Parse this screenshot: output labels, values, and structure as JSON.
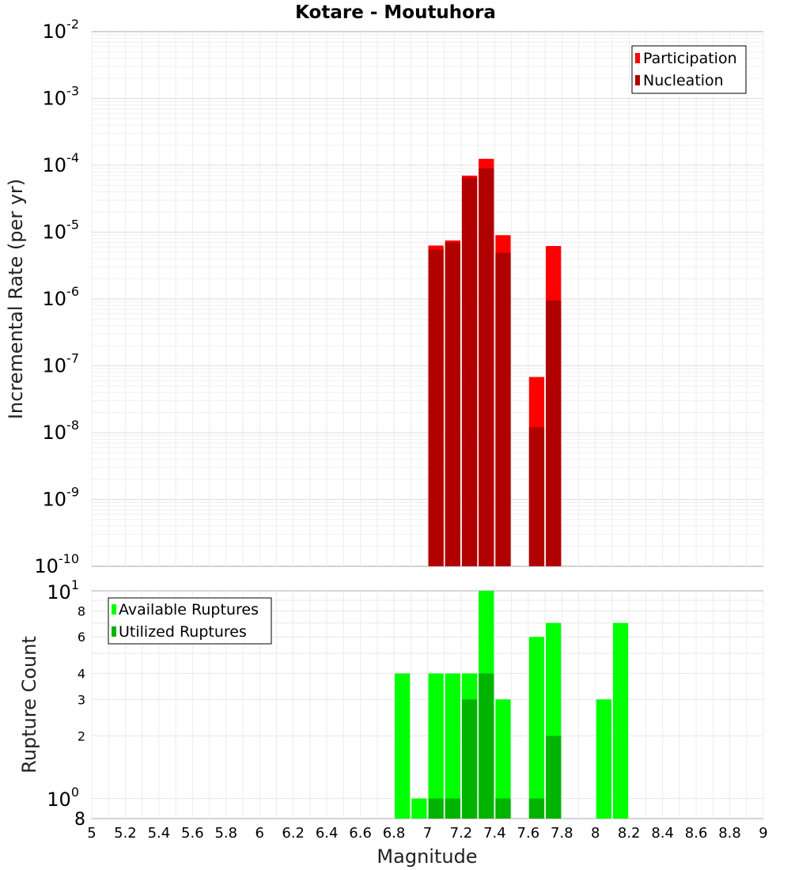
{
  "chart_data": [
    {
      "type": "bar",
      "title": "Kotare - Moutuhora",
      "xlabel": "",
      "ylabel": "Incremental Rate (per yr)",
      "yscale": "log",
      "ylim": [
        1e-10,
        0.01
      ],
      "xlim": [
        5,
        9
      ],
      "bin_width": 0.1,
      "y_tick_bases": [
        "10",
        "10",
        "10",
        "10",
        "10",
        "10",
        "10",
        "10",
        "10"
      ],
      "y_tick_exponents": [
        "-10",
        "-9",
        "-8",
        "-7",
        "-6",
        "-5",
        "-4",
        "-3",
        "-2"
      ],
      "legend": {
        "position": "top-right",
        "entries": [
          "Participation",
          "Nucleation"
        ]
      },
      "series": [
        {
          "name": "Participation",
          "color": "#ff0000",
          "x": [
            7.05,
            7.15,
            7.25,
            7.35,
            7.45,
            7.65,
            7.75
          ],
          "values": [
            6.3e-06,
            7.5e-06,
            7e-05,
            0.000125,
            9e-06,
            6.8e-08,
            6.2e-06
          ]
        },
        {
          "name": "Nucleation",
          "color": "#b00000",
          "x": [
            7.05,
            7.15,
            7.25,
            7.35,
            7.45,
            7.65,
            7.75
          ],
          "values": [
            5.5e-06,
            7e-06,
            6.5e-05,
            9e-05,
            4.9e-06,
            1.2e-08,
            9.5e-07
          ]
        }
      ]
    },
    {
      "type": "bar",
      "title": "",
      "xlabel": "Magnitude",
      "ylabel": "Rupture Count",
      "yscale": "log",
      "ylim": [
        0.8,
        10
      ],
      "xlim": [
        5,
        9
      ],
      "bin_width": 0.1,
      "x_tick_labels": [
        "5",
        "5.2",
        "5.4",
        "5.6",
        "5.8",
        "6",
        "6.2",
        "6.4",
        "6.6",
        "6.8",
        "7",
        "7.2",
        "7.4",
        "7.6",
        "7.8",
        "8",
        "8.2",
        "8.4",
        "8.6",
        "8.8",
        "9"
      ],
      "y_tick_labels": [
        "2",
        "3",
        "4",
        "6",
        "8"
      ],
      "y_extra_labels": {
        "top_base": "10",
        "top_exp": "1",
        "unit_base": "10",
        "unit_exp": "0",
        "bottom": "8"
      },
      "legend": {
        "position": "top-left",
        "entries": [
          "Available Ruptures",
          "Utilized Ruptures"
        ]
      },
      "series": [
        {
          "name": "Available Ruptures",
          "color": "#00ff00",
          "x": [
            6.85,
            6.95,
            7.05,
            7.15,
            7.25,
            7.35,
            7.45,
            7.65,
            7.75,
            8.05,
            8.15
          ],
          "values": [
            4,
            1,
            4,
            4,
            4,
            10,
            3,
            6,
            7,
            3,
            7
          ]
        },
        {
          "name": "Utilized Ruptures",
          "color": "#00b400",
          "x": [
            7.05,
            7.15,
            7.25,
            7.35,
            7.45,
            7.65,
            7.75
          ],
          "values": [
            1,
            1,
            3,
            4,
            1,
            1,
            2
          ]
        }
      ]
    }
  ]
}
